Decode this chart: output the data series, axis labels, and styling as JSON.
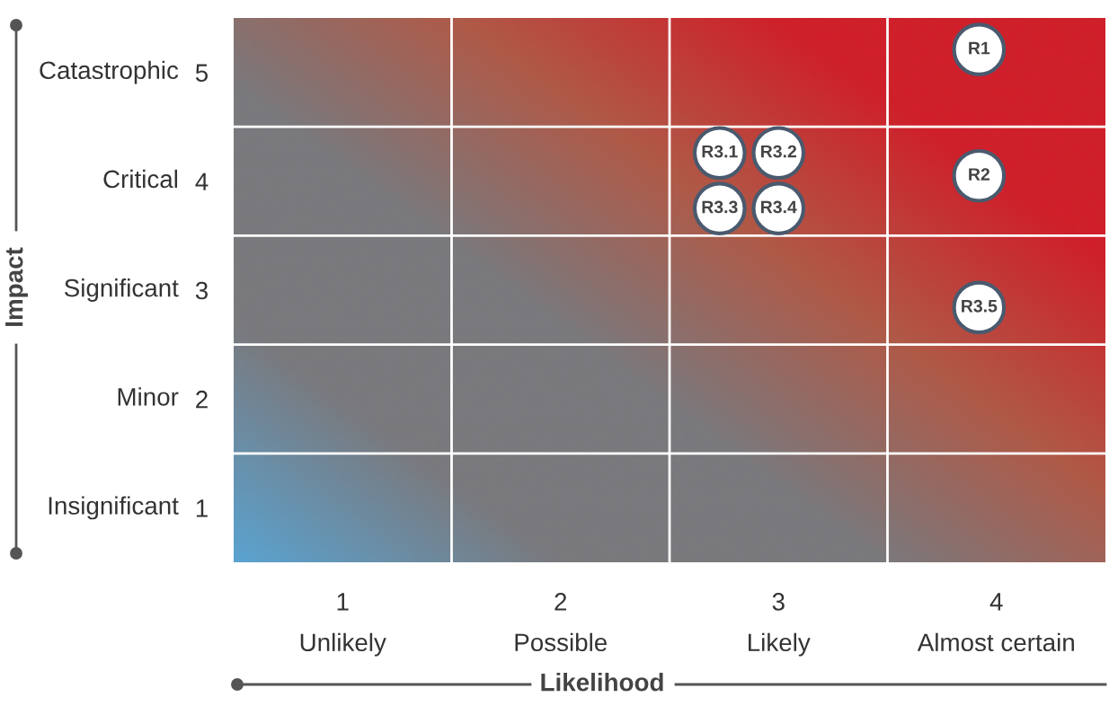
{
  "chart_data": {
    "type": "scatter",
    "xlabel": "Likelihood",
    "xlim": [
      0.5,
      4.5
    ],
    "ylim": [
      0.5,
      5.5
    ],
    "xticks": [
      1,
      2,
      3,
      4
    ],
    "yticks": [
      1,
      2,
      3,
      4,
      5
    ],
    "grid": true,
    "marker": "circle",
    "series": [
      {
        "color": "#ffffff",
        "x": [
          3.92,
          2.73,
          3.0,
          3.92,
          2.73,
          3.0,
          3.92
        ],
        "values": [
          5.21,
          4.26,
          4.26,
          4.05,
          3.75,
          3.75,
          2.84
        ]
      }
    ],
    "annotations": [
      "Unlikely",
      "Possible",
      "Likely",
      "Almost certain",
      "Insignificant",
      "Minor",
      "Significant",
      "Critical",
      "Catastrophic",
      "Impact",
      {
        "text": "R1",
        "x": 3.92,
        "y": 5.21
      },
      {
        "text": "R3.1",
        "x": 2.73,
        "y": 4.26
      },
      {
        "text": "R3.2",
        "x": 3.0,
        "y": 4.26
      },
      {
        "text": "R2",
        "x": 3.92,
        "y": 4.05
      },
      {
        "text": "R3.3",
        "x": 2.73,
        "y": 3.75
      },
      {
        "text": "R3.4",
        "x": 3.0,
        "y": 3.75
      },
      {
        "text": "R3.5",
        "x": 3.92,
        "y": 2.84
      }
    ]
  }
}
